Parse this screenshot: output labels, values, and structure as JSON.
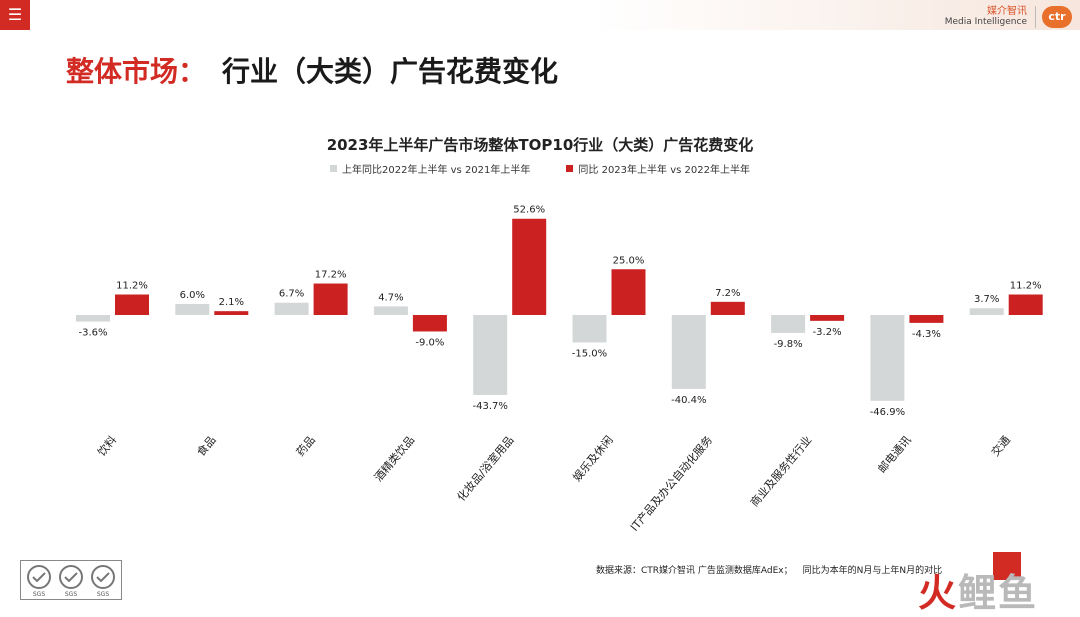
{
  "header": {
    "brand_cn": "媒介智讯",
    "brand_en": "Media Intelligence",
    "logo_text": "ctr",
    "menu_icon": "hamburger-icon"
  },
  "page": {
    "title_prefix": "整体市场：",
    "title_main": "行业（大类）广告花费变化"
  },
  "footer": {
    "source_a": "数据来源：CTR媒介智讯 广告监测数据库AdEx；",
    "source_b": "同比为本年的N月与上年N月的对比",
    "watermark_a": "火",
    "watermark_b": "鲤鱼",
    "cert_labels": [
      "SGS",
      "SGS",
      "SGS"
    ]
  },
  "colors": {
    "accent": "#d22b24",
    "series_prev": "#d4d7d7",
    "series_curr": "#cc2121"
  },
  "chart_data": {
    "type": "bar",
    "title": "2023年上半年广告市场整体TOP10行业（大类）广告花费变化",
    "categories": [
      "饮料",
      "食品",
      "药品",
      "酒精类饮品",
      "化妆品/浴室用品",
      "娱乐及休闲",
      "IT产品及办公自动化服务",
      "商业及服务性行业",
      "邮电通讯",
      "交通"
    ],
    "series": [
      {
        "name": "上年同比2022年上半年 vs 2021年上半年",
        "values": [
          -3.6,
          6.0,
          6.7,
          4.7,
          -43.7,
          -15.0,
          -40.4,
          -9.8,
          -46.9,
          3.7
        ]
      },
      {
        "name": "同比 2023年上半年 vs 2022年上半年",
        "values": [
          11.2,
          2.1,
          17.2,
          -9.0,
          52.6,
          25.0,
          7.2,
          -3.2,
          -4.3,
          11.2
        ]
      }
    ],
    "value_labels": [
      [
        "-3.6%",
        "6.0%",
        "6.7%",
        "4.7%",
        "-43.7%",
        "-15.0%",
        "-40.4%",
        "-9.8%",
        "-46.9%",
        "3.7%"
      ],
      [
        "11.2%",
        "2.1%",
        "17.2%",
        "-9.0%",
        "52.6%",
        "25.0%",
        "7.2%",
        "-3.2%",
        "-4.3%",
        "11.2%"
      ]
    ],
    "legend_position": "top-center",
    "grid": false,
    "ylim": [
      -55,
      60
    ]
  }
}
